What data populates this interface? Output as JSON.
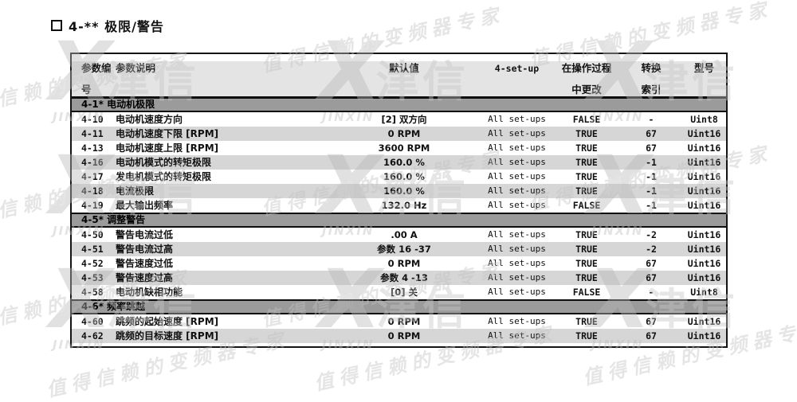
{
  "page_title": "4-** 极限/警告",
  "watermark": {
    "slogan": "值得信赖的变频器专家",
    "logo_x": "X",
    "logo_cn": "津信",
    "logo_latin": "JINXIN"
  },
  "colors": {
    "table_border": "#141414",
    "header_bg": "#e4e4e4",
    "section_bg": "#9b9b9b",
    "row_alt_bg": "#d6d6d6",
    "watermark_gray": "#c3c3c3"
  },
  "table": {
    "headers": {
      "num_line1": "参数编",
      "num_line2": "号",
      "desc": "参数说明",
      "default": "默认值",
      "setup": "4-set-up",
      "changed_line1": "在操作过程",
      "changed_line2": "中更改",
      "index_line1": "转换",
      "index_line2": "索引",
      "type": "型号"
    },
    "sections": [
      {
        "title": "4-1* 电动机极限",
        "rows": [
          {
            "num": "4-10",
            "desc": "电动机速度方向",
            "default": "[2] 双方向",
            "setup": "All set-ups",
            "changed": "FALSE",
            "index": "-",
            "type": "Uint8"
          },
          {
            "num": "4-11",
            "desc": "电动机速度下限 [RPM]",
            "default": "0 RPM",
            "setup": "All set-ups",
            "changed": "TRUE",
            "index": "67",
            "type": "Uint16"
          },
          {
            "num": "4-13",
            "desc": "电动机速度上限 [RPM]",
            "default": "3600 RPM",
            "setup": "All set-ups",
            "changed": "TRUE",
            "index": "67",
            "type": "Uint16"
          },
          {
            "num": "4-16",
            "desc": "电动机模式的转矩极限",
            "default": "160.0 %",
            "setup": "All set-ups",
            "changed": "TRUE",
            "index": "-1",
            "type": "Uint16"
          },
          {
            "num": "4-17",
            "desc": "发电机模式的转矩极限",
            "default": "160.0 %",
            "setup": "All set-ups",
            "changed": "TRUE",
            "index": "-1",
            "type": "Uint16"
          },
          {
            "num": "4-18",
            "desc": "电流极限",
            "default": "160.0 %",
            "setup": "All set-ups",
            "changed": "TRUE",
            "index": "-1",
            "type": "Uint16"
          },
          {
            "num": "4-19",
            "desc": "最大输出频率",
            "default": "132.0 Hz",
            "setup": "All set-ups",
            "changed": "FALSE",
            "index": "-1",
            "type": "Uint16"
          }
        ]
      },
      {
        "title": "4-5* 调整警告",
        "rows": [
          {
            "num": "4-50",
            "desc": "警告电流过低",
            "default": ".00 A",
            "setup": "All set-ups",
            "changed": "TRUE",
            "index": "-2",
            "type": "Uint16"
          },
          {
            "num": "4-51",
            "desc": "警告电流过高",
            "default": "参数 16 -37",
            "setup": "All set-ups",
            "changed": "TRUE",
            "index": "-2",
            "type": "Uint16"
          },
          {
            "num": "4-52",
            "desc": "警告速度过低",
            "default": "0 RPM",
            "setup": "All set-ups",
            "changed": "TRUE",
            "index": "67",
            "type": "Uint16"
          },
          {
            "num": "4-53",
            "desc": "警告速度过高",
            "default": "参数 4 -13",
            "setup": "All set-ups",
            "changed": "TRUE",
            "index": "67",
            "type": "Uint16"
          },
          {
            "num": "4-58",
            "desc": "电动机缺相功能",
            "default": "[0] 关",
            "setup": "All set-ups",
            "changed": "FALSE",
            "index": "-",
            "type": "Uint8"
          }
        ]
      },
      {
        "title": "4-6* 频率跳越",
        "rows": [
          {
            "num": "4-60",
            "desc": "跳频的起始速度 [RPM]",
            "default": "0 RPM",
            "setup": "All set-ups",
            "changed": "TRUE",
            "index": "67",
            "type": "Uint16"
          },
          {
            "num": "4-62",
            "desc": "跳频的目标速度 [RPM]",
            "default": "0 RPM",
            "setup": "All set-ups",
            "changed": "TRUE",
            "index": "67",
            "type": "Uint16"
          }
        ]
      }
    ]
  }
}
